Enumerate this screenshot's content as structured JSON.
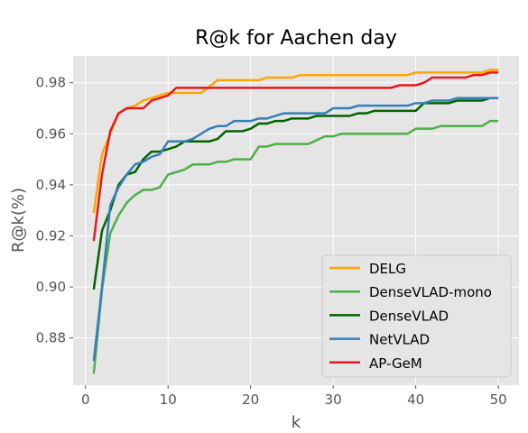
{
  "chart_data": {
    "type": "line",
    "title": "R@k for Aachen day",
    "xlabel": "k",
    "ylabel": "R@k(%)",
    "xlim": [
      -1.5,
      52.5
    ],
    "ylim": [
      0.8615,
      0.9905
    ],
    "xticks": [
      0,
      10,
      20,
      30,
      40,
      50
    ],
    "yticks": [
      0.88,
      0.9,
      0.92,
      0.94,
      0.96,
      0.98
    ],
    "ytick_labels": [
      "0.88",
      "0.90",
      "0.92",
      "0.94",
      "0.96",
      "0.98"
    ],
    "grid": true,
    "legend_position": "lower-right",
    "series": [
      {
        "name": "DELG",
        "color": "#ffa500",
        "points": [
          [
            1,
            0.929
          ],
          [
            2,
            0.952
          ],
          [
            3,
            0.96
          ],
          [
            4,
            0.968
          ],
          [
            5,
            0.97
          ],
          [
            6,
            0.971
          ],
          [
            7,
            0.973
          ],
          [
            8,
            0.974
          ],
          [
            9,
            0.975
          ],
          [
            10,
            0.976
          ],
          [
            14,
            0.976
          ],
          [
            16,
            0.981
          ],
          [
            21,
            0.981
          ],
          [
            22,
            0.982
          ],
          [
            25,
            0.982
          ],
          [
            26,
            0.983
          ],
          [
            39,
            0.983
          ],
          [
            40,
            0.984
          ],
          [
            48,
            0.984
          ],
          [
            49,
            0.985
          ],
          [
            50,
            0.985
          ]
        ]
      },
      {
        "name": "DenseVLAD-mono",
        "color": "#4daf4a",
        "points": [
          [
            1,
            0.866
          ],
          [
            2,
            0.899
          ],
          [
            3,
            0.921
          ],
          [
            4,
            0.928
          ],
          [
            5,
            0.933
          ],
          [
            6,
            0.936
          ],
          [
            7,
            0.938
          ],
          [
            8,
            0.938
          ],
          [
            9,
            0.939
          ],
          [
            10,
            0.944
          ],
          [
            12,
            0.946
          ],
          [
            13,
            0.948
          ],
          [
            15,
            0.948
          ],
          [
            16,
            0.949
          ],
          [
            17,
            0.949
          ],
          [
            18,
            0.95
          ],
          [
            20,
            0.95
          ],
          [
            21,
            0.955
          ],
          [
            22,
            0.955
          ],
          [
            23,
            0.956
          ],
          [
            27,
            0.956
          ],
          [
            29,
            0.959
          ],
          [
            30,
            0.959
          ],
          [
            31,
            0.96
          ],
          [
            39,
            0.96
          ],
          [
            40,
            0.962
          ],
          [
            42,
            0.962
          ],
          [
            43,
            0.963
          ],
          [
            48,
            0.963
          ],
          [
            49,
            0.965
          ],
          [
            50,
            0.965
          ]
        ]
      },
      {
        "name": "DenseVLAD",
        "color": "#006400",
        "points": [
          [
            1,
            0.899
          ],
          [
            2,
            0.922
          ],
          [
            3,
            0.93
          ],
          [
            4,
            0.94
          ],
          [
            5,
            0.944
          ],
          [
            6,
            0.945
          ],
          [
            7,
            0.95
          ],
          [
            8,
            0.953
          ],
          [
            9,
            0.953
          ],
          [
            10,
            0.954
          ],
          [
            11,
            0.955
          ],
          [
            12,
            0.957
          ],
          [
            15,
            0.957
          ],
          [
            16,
            0.958
          ],
          [
            17,
            0.961
          ],
          [
            19,
            0.961
          ],
          [
            20,
            0.962
          ],
          [
            21,
            0.964
          ],
          [
            22,
            0.964
          ],
          [
            23,
            0.965
          ],
          [
            24,
            0.965
          ],
          [
            25,
            0.966
          ],
          [
            27,
            0.966
          ],
          [
            28,
            0.967
          ],
          [
            32,
            0.967
          ],
          [
            33,
            0.968
          ],
          [
            34,
            0.968
          ],
          [
            35,
            0.969
          ],
          [
            40,
            0.969
          ],
          [
            41,
            0.972
          ],
          [
            44,
            0.972
          ],
          [
            45,
            0.973
          ],
          [
            48,
            0.973
          ],
          [
            49,
            0.974
          ],
          [
            50,
            0.974
          ]
        ]
      },
      {
        "name": "NetVLAD",
        "color": "#377eb8",
        "points": [
          [
            1,
            0.871
          ],
          [
            2,
            0.9
          ],
          [
            3,
            0.932
          ],
          [
            4,
            0.939
          ],
          [
            5,
            0.944
          ],
          [
            6,
            0.948
          ],
          [
            7,
            0.949
          ],
          [
            8,
            0.951
          ],
          [
            9,
            0.952
          ],
          [
            10,
            0.957
          ],
          [
            12,
            0.957
          ],
          [
            13,
            0.958
          ],
          [
            14,
            0.96
          ],
          [
            15,
            0.962
          ],
          [
            16,
            0.963
          ],
          [
            17,
            0.963
          ],
          [
            18,
            0.965
          ],
          [
            20,
            0.965
          ],
          [
            21,
            0.966
          ],
          [
            22,
            0.966
          ],
          [
            23,
            0.967
          ],
          [
            24,
            0.968
          ],
          [
            29,
            0.968
          ],
          [
            30,
            0.97
          ],
          [
            32,
            0.97
          ],
          [
            33,
            0.971
          ],
          [
            39,
            0.971
          ],
          [
            40,
            0.972
          ],
          [
            41,
            0.972
          ],
          [
            42,
            0.973
          ],
          [
            44,
            0.973
          ],
          [
            45,
            0.974
          ],
          [
            50,
            0.974
          ]
        ]
      },
      {
        "name": "AP-GeM",
        "color": "#e41a1c",
        "points": [
          [
            1,
            0.918
          ],
          [
            2,
            0.944
          ],
          [
            3,
            0.961
          ],
          [
            4,
            0.968
          ],
          [
            5,
            0.97
          ],
          [
            6,
            0.97
          ],
          [
            7,
            0.97
          ],
          [
            8,
            0.973
          ],
          [
            9,
            0.974
          ],
          [
            10,
            0.975
          ],
          [
            11,
            0.978
          ],
          [
            37,
            0.978
          ],
          [
            38,
            0.979
          ],
          [
            40,
            0.979
          ],
          [
            41,
            0.98
          ],
          [
            42,
            0.982
          ],
          [
            46,
            0.982
          ],
          [
            47,
            0.983
          ],
          [
            48,
            0.983
          ],
          [
            49,
            0.984
          ],
          [
            50,
            0.984
          ]
        ]
      }
    ]
  }
}
